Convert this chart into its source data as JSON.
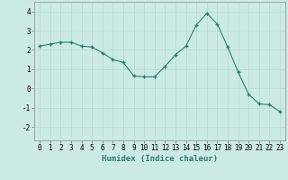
{
  "x": [
    0,
    1,
    2,
    3,
    4,
    5,
    6,
    7,
    8,
    9,
    10,
    11,
    12,
    13,
    14,
    15,
    16,
    17,
    18,
    19,
    20,
    21,
    22,
    23
  ],
  "y": [
    2.2,
    2.3,
    2.4,
    2.4,
    2.2,
    2.15,
    1.85,
    1.5,
    1.35,
    0.65,
    0.6,
    0.6,
    1.15,
    1.75,
    2.2,
    3.3,
    3.9,
    3.35,
    2.15,
    0.85,
    -0.3,
    -0.8,
    -0.85,
    -1.2
  ],
  "xlabel": "Humidex (Indice chaleur)",
  "xlim": [
    -0.5,
    23.5
  ],
  "ylim": [
    -2.7,
    4.5
  ],
  "yticks": [
    -2,
    -1,
    0,
    1,
    2,
    3,
    4
  ],
  "xticks": [
    0,
    1,
    2,
    3,
    4,
    5,
    6,
    7,
    8,
    9,
    10,
    11,
    12,
    13,
    14,
    15,
    16,
    17,
    18,
    19,
    20,
    21,
    22,
    23
  ],
  "line_color": "#2e7d6e",
  "marker": "+",
  "bg_color": "#cceae4",
  "grid_color": "#b8d8d2",
  "label_fontsize": 6.5,
  "tick_fontsize": 5.5
}
